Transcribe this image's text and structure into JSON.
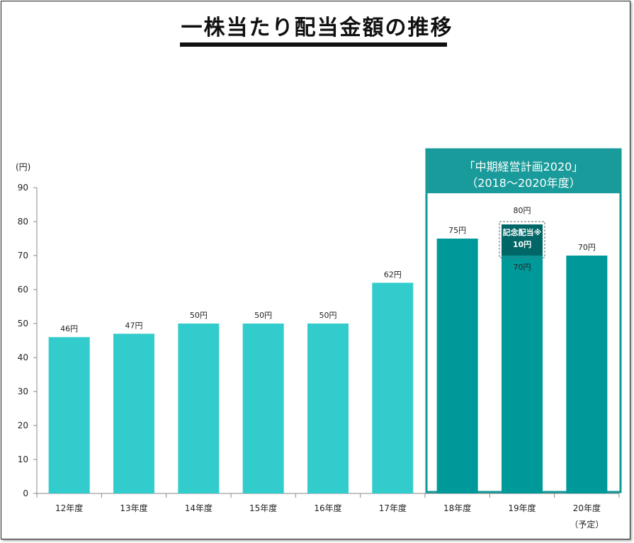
{
  "title": "一株当たり配当金額の推移",
  "chart_data": {
    "type": "bar",
    "ylabel": "(円)",
    "ylim": [
      0,
      90
    ],
    "yticks": [
      0,
      10,
      20,
      30,
      40,
      50,
      60,
      70,
      80,
      90
    ],
    "categories": [
      "12年度",
      "13年度",
      "14年度",
      "15年度",
      "16年度",
      "17年度",
      "18年度",
      "19年度",
      "20年度"
    ],
    "category_sublabels": [
      "",
      "",
      "",
      "",
      "",
      "",
      "",
      "",
      "（予定）"
    ],
    "values": [
      46,
      47,
      50,
      50,
      50,
      62,
      75,
      70,
      70
    ],
    "value_labels": [
      "46円",
      "47円",
      "50円",
      "50円",
      "50円",
      "62円",
      "75円",
      "70円",
      "70円"
    ],
    "highlight_from_index": 6,
    "special": {
      "index": 7,
      "base": 70,
      "extra": 10,
      "extra_label": "記念配当※",
      "extra_value_label": "10円",
      "total_label": "80円"
    },
    "plan_box": {
      "title_line1": "「中期経営計画2020」",
      "title_line2": "（2018～2020年度）"
    },
    "colors": {
      "normal": "#33cccc",
      "highlight": "#009999",
      "special": "#006666",
      "plan_border": "#119999",
      "plan_header": "#1a9b9b"
    }
  }
}
